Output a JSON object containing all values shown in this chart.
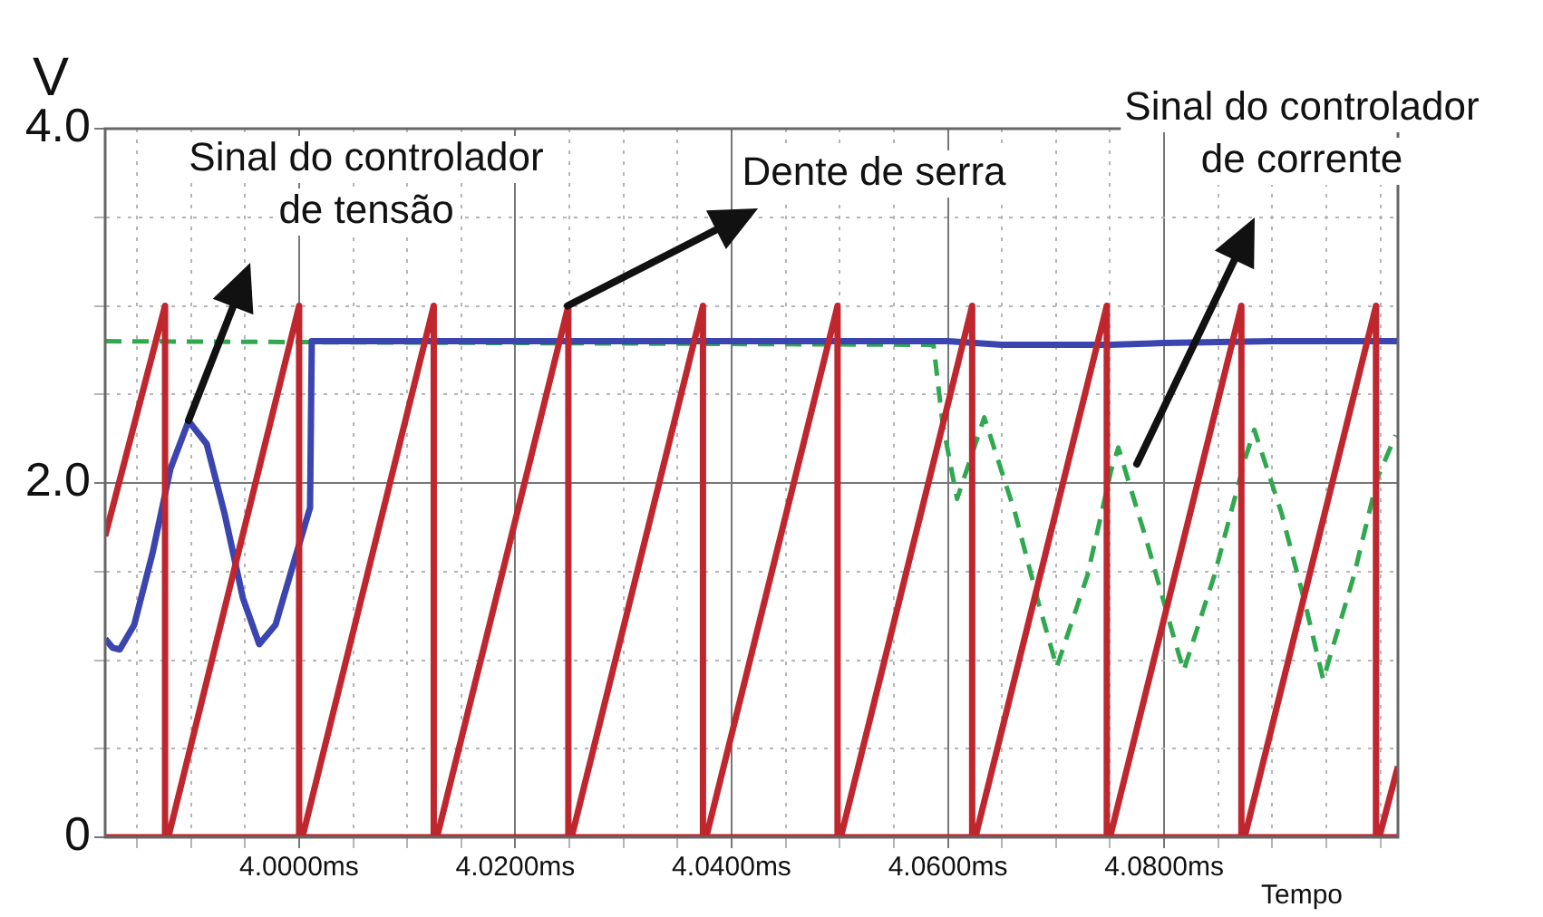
{
  "chart_data": {
    "type": "line",
    "ylabel": "V",
    "xlabel": "Tempo",
    "xlim": [
      3.98206,
      4.10163
    ],
    "ylim": [
      0,
      4
    ],
    "xticks": [
      {
        "value": 3.985,
        "label": null
      },
      {
        "value": 3.99,
        "label": null
      },
      {
        "value": 3.995,
        "label": null
      },
      {
        "value": 4.0,
        "label": "4.0000ms"
      },
      {
        "value": 4.005,
        "label": null
      },
      {
        "value": 4.01,
        "label": null
      },
      {
        "value": 4.015,
        "label": null
      },
      {
        "value": 4.02,
        "label": "4.0200ms"
      },
      {
        "value": 4.025,
        "label": null
      },
      {
        "value": 4.03,
        "label": null
      },
      {
        "value": 4.035,
        "label": null
      },
      {
        "value": 4.04,
        "label": "4.0400ms"
      },
      {
        "value": 4.045,
        "label": null
      },
      {
        "value": 4.05,
        "label": null
      },
      {
        "value": 4.055,
        "label": null
      },
      {
        "value": 4.06,
        "label": "4.0600ms"
      },
      {
        "value": 4.065,
        "label": null
      },
      {
        "value": 4.07,
        "label": null
      },
      {
        "value": 4.075,
        "label": null
      },
      {
        "value": 4.08,
        "label": "4.0800ms"
      },
      {
        "value": 4.085,
        "label": null
      },
      {
        "value": 4.09,
        "label": null
      },
      {
        "value": 4.095,
        "label": null
      },
      {
        "value": 4.1,
        "label": null
      }
    ],
    "yticks": [
      {
        "value": 0,
        "label": "0"
      },
      {
        "value": 0.5,
        "label": null
      },
      {
        "value": 1,
        "label": null
      },
      {
        "value": 1.5,
        "label": null
      },
      {
        "value": 2,
        "label": "2.0"
      },
      {
        "value": 2.5,
        "label": null
      },
      {
        "value": 3,
        "label": null
      },
      {
        "value": 3.5,
        "label": null
      },
      {
        "value": 4,
        "label": "4.0"
      }
    ],
    "grid": true,
    "legend": false,
    "marker": "none",
    "series": [
      {
        "color": "#c0262d",
        "line_style": "solid",
        "x": [
          3.98206,
          4.10163
        ],
        "values": [
          0,
          0
        ]
      },
      {
        "color": "#c0262d",
        "line_style": "solid",
        "x": [
          3.98206,
          3.9876,
          3.9876,
          3.9879,
          4.0,
          4.0,
          4.0003,
          4.01245,
          4.01245,
          4.01275,
          4.0249,
          4.0249,
          4.0252,
          4.03735,
          4.03735,
          4.03765,
          4.0498,
          4.0498,
          4.0501,
          4.06225,
          4.06225,
          4.06255,
          4.0747,
          4.0747,
          4.075,
          4.08715,
          4.08715,
          4.08745,
          4.0996,
          4.0996,
          4.0999,
          4.10163
        ],
        "values": [
          1.7,
          3.0,
          0,
          0,
          3.0,
          0,
          0,
          3.0,
          0,
          0,
          3.0,
          0,
          0,
          3.0,
          0,
          0,
          3.0,
          0,
          0,
          3.0,
          0,
          0,
          3.0,
          0,
          0,
          3.0,
          0,
          0,
          3.0,
          0,
          0,
          0.4
        ]
      },
      {
        "color": "#3a45b0",
        "line_style": "solid",
        "x": [
          3.98207,
          3.98274,
          3.98341,
          3.98475,
          3.98643,
          3.9881,
          3.98978,
          3.99145,
          3.99313,
          3.9948,
          3.99631,
          3.99782,
          3.9995,
          4.00101,
          4.00117,
          4.03,
          4.06,
          4.065,
          4.075,
          4.08,
          4.09,
          4.10163
        ],
        "values": [
          1.12,
          1.07,
          1.06,
          1.2,
          1.6,
          2.08,
          2.35,
          2.22,
          1.82,
          1.35,
          1.09,
          1.2,
          1.55,
          1.86,
          2.8,
          2.8,
          2.8,
          2.78,
          2.78,
          2.79,
          2.8,
          2.8
        ]
      },
      {
        "color": "#2fa84f",
        "line_style": "dashed",
        "x": [
          3.98206,
          4.05867,
          4.05951,
          4.06085,
          4.06337,
          4.06622,
          4.0684,
          4.07007,
          4.07292,
          4.0751,
          4.07577,
          4.07845,
          4.0808,
          4.08181,
          4.08466,
          4.08751,
          4.08835,
          4.09086,
          4.09304,
          4.09472,
          4.09757,
          4.09975,
          4.10142
        ],
        "values": [
          2.8,
          2.78,
          2.34,
          1.91,
          2.37,
          1.83,
          1.32,
          0.96,
          1.48,
          2.07,
          2.2,
          1.66,
          1.15,
          0.94,
          1.48,
          2.14,
          2.3,
          1.83,
          1.32,
          0.89,
          1.48,
          2.03,
          2.27
        ]
      }
    ],
    "annotations": [
      "Sinal do controlador de tensão",
      {
        "text": "Dente de serra",
        "x": 4.02481,
        "y": 3.0
      },
      "Sinal do controlador de corrente"
    ]
  }
}
